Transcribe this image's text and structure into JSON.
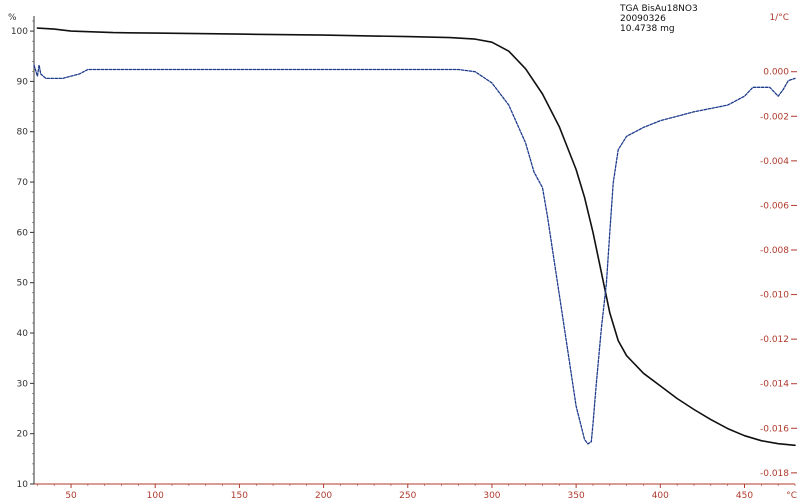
{
  "chart_data": {
    "type": "line",
    "title": "",
    "annotation_lines": [
      "TGA BisAu18NO3",
      "20090326",
      "10.4738 mg"
    ],
    "xlabel": "",
    "x_unit": "°C",
    "ylabel_left": "",
    "y_unit_left": "%",
    "ylabel_right": "",
    "y_unit_right": "1/°C",
    "xlim": [
      28,
      480
    ],
    "ylim_left": [
      10,
      103
    ],
    "ylim_right": [
      -0.0185,
      0.0025
    ],
    "x_ticks": [
      "50",
      "100",
      "150",
      "200",
      "250",
      "300",
      "350",
      "400",
      "450"
    ],
    "y_ticks_left": [
      "10",
      "20",
      "30",
      "40",
      "50",
      "60",
      "70",
      "80",
      "90",
      "100"
    ],
    "y_ticks_right": [
      "0.000",
      "-0.002",
      "-0.004",
      "-0.006",
      "-0.008",
      "-0.010",
      "-0.012",
      "-0.014",
      "-0.016",
      "-0.018"
    ],
    "grid": false,
    "series": [
      {
        "axis": "left",
        "style": "solid",
        "color": "#111111",
        "x": [
          30,
          40,
          50,
          75,
          100,
          150,
          200,
          250,
          275,
          290,
          300,
          310,
          320,
          330,
          340,
          350,
          355,
          360,
          365,
          370,
          375,
          380,
          390,
          400,
          410,
          420,
          430,
          440,
          450,
          460,
          470,
          480
        ],
        "y": [
          100.6,
          100.4,
          100.0,
          99.7,
          99.6,
          99.4,
          99.2,
          98.9,
          98.7,
          98.4,
          97.8,
          96.0,
          92.5,
          87.5,
          81.0,
          72.5,
          67.0,
          60.0,
          52.0,
          44.0,
          38.5,
          35.5,
          32.0,
          29.5,
          27.0,
          24.8,
          22.8,
          21.0,
          19.6,
          18.6,
          18.0,
          17.7
        ]
      },
      {
        "axis": "right",
        "style": "dashed",
        "color": "#1f3c8c",
        "x": [
          28,
          30,
          31,
          32,
          35,
          45,
          55,
          60,
          100,
          150,
          200,
          250,
          280,
          290,
          300,
          310,
          320,
          325,
          330,
          333,
          337,
          340,
          345,
          350,
          355,
          357,
          359,
          360,
          362,
          365,
          368,
          370,
          372,
          375,
          380,
          390,
          400,
          420,
          440,
          450,
          455,
          460,
          465,
          470,
          473,
          476,
          480
        ],
        "y": [
          0.0003,
          -0.0002,
          0.0003,
          -0.0001,
          -0.0003,
          -0.0003,
          -0.0001,
          0.0001,
          0.0001,
          0.0001,
          0.0001,
          0.0001,
          0.0001,
          0.0,
          -0.0005,
          -0.0015,
          -0.0032,
          -0.0045,
          -0.0052,
          -0.0065,
          -0.0085,
          -0.01,
          -0.0125,
          -0.015,
          -0.0165,
          -0.0167,
          -0.0166,
          -0.0158,
          -0.014,
          -0.0115,
          -0.0095,
          -0.0072,
          -0.005,
          -0.0035,
          -0.0029,
          -0.0025,
          -0.0022,
          -0.0018,
          -0.0015,
          -0.0011,
          -0.0007,
          -0.0007,
          -0.0007,
          -0.0011,
          -0.0008,
          -0.0004,
          -0.0003
        ]
      }
    ]
  }
}
